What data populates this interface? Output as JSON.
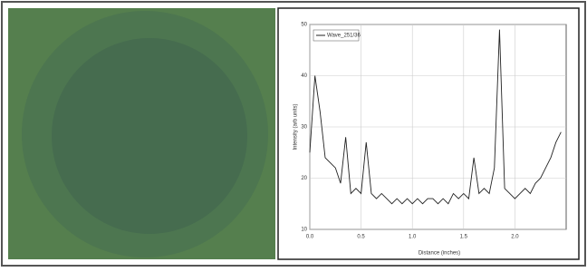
{
  "chart_data": {
    "type": "line",
    "x_label": "Distance (inches)",
    "y_label": "Intensity (arb units)",
    "x": [
      0,
      0.05,
      0.1,
      0.15,
      0.2,
      0.25,
      0.3,
      0.35,
      0.4,
      0.45,
      0.5,
      0.55,
      0.6,
      0.65,
      0.7,
      0.75,
      0.8,
      0.85,
      0.9,
      0.95,
      1.0,
      1.05,
      1.1,
      1.15,
      1.2,
      1.25,
      1.3,
      1.35,
      1.4,
      1.45,
      1.5,
      1.55,
      1.6,
      1.65,
      1.7,
      1.75,
      1.8,
      1.85,
      1.9,
      1.95,
      2.0,
      2.05,
      2.1,
      2.15,
      2.2,
      2.25,
      2.3,
      2.35,
      2.4,
      2.45
    ],
    "series": [
      {
        "name": "Wave_251/36",
        "color": "#222222",
        "values": [
          25,
          40,
          33,
          24,
          23,
          22,
          19,
          28,
          17,
          18,
          17,
          27,
          17,
          16,
          17,
          16,
          15,
          16,
          15,
          16,
          15,
          16,
          15,
          16,
          16,
          15,
          16,
          15,
          17,
          16,
          17,
          16,
          24,
          17,
          18,
          17,
          22,
          49,
          18,
          17,
          16,
          17,
          18,
          17,
          19,
          20,
          22,
          24,
          27,
          29
        ]
      }
    ],
    "xlim": [
      0,
      2.5
    ],
    "ylim": [
      10,
      50
    ],
    "xticks": [
      {
        "value": 0,
        "label": "0.0"
      },
      {
        "value": 0.5,
        "label": "0.5"
      },
      {
        "value": 1,
        "label": "1.0"
      },
      {
        "value": 1.5,
        "label": "1.5"
      },
      {
        "value": 2,
        "label": "2.0"
      }
    ],
    "yticks": [
      10,
      20,
      30,
      40,
      50
    ],
    "grid": true,
    "legend": "upper-left"
  }
}
